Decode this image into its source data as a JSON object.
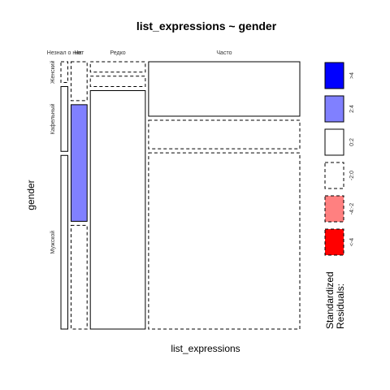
{
  "chart_data": {
    "type": "mosaic",
    "title": "list_expressions ~ gender",
    "xlabel": "list_expressions",
    "ylabel": "gender",
    "x_categories": [
      "Не знал о них",
      "Нет",
      "Редко",
      "Часто"
    ],
    "x_labels_shown": [
      "Незнал о них",
      "Нет",
      "Редко",
      "Часто"
    ],
    "y_categories": [
      "Женский",
      "Кафельный",
      "Мужской"
    ],
    "cells": [
      {
        "x": "Не знал о них",
        "y": "Женский",
        "proportion": 0.08,
        "shade": "-2:0"
      },
      {
        "x": "Не знал о них",
        "y": "Кафельный",
        "proportion": 0.25,
        "shade": "0:2"
      },
      {
        "x": "Не знал о них",
        "y": "Мужской",
        "proportion": 0.67,
        "shade": "0:2"
      },
      {
        "x": "Нет",
        "y": "Женский",
        "proportion": 0.15,
        "shade": "-2:0"
      },
      {
        "x": "Нет",
        "y": "Кафельный",
        "proportion": 0.45,
        "shade": "2:4"
      },
      {
        "x": "Нет",
        "y": "Мужской",
        "proportion": 0.4,
        "shade": "-2:0"
      },
      {
        "x": "Редко",
        "y": "Женский",
        "proportion": 0.04,
        "shade": "-2:0"
      },
      {
        "x": "Редко",
        "y": "Кафельный",
        "proportion": 0.04,
        "shade": "-2:0"
      },
      {
        "x": "Редко",
        "y": "Мужской",
        "proportion": 0.92,
        "shade": "0:2"
      },
      {
        "x": "Часто",
        "y": "Женский",
        "proportion": 0.21,
        "shade": "0:2"
      },
      {
        "x": "Часто",
        "y": "Кафельный",
        "proportion": 0.11,
        "shade": "-2:0"
      },
      {
        "x": "Часто",
        "y": "Мужской",
        "proportion": 0.68,
        "shade": "-2:0"
      }
    ],
    "x_shares": [
      0.03,
      0.07,
      0.24,
      0.66
    ],
    "legend": {
      "title_lines": [
        "Standardized",
        "Residuals:"
      ],
      "position": "right",
      "items": [
        {
          "label": ">4",
          "fill": "#0000ff",
          "dashed": false
        },
        {
          "label": "2:4",
          "fill": "#8080ff",
          "dashed": false
        },
        {
          "label": "0:2",
          "fill": "#ffffff",
          "dashed": false
        },
        {
          "label": "-2:0",
          "fill": "#ffffff",
          "dashed": true
        },
        {
          "label": "-4:-2",
          "fill": "#ff8080",
          "dashed": true
        },
        {
          "label": "<-4",
          "fill": "#ff0000",
          "dashed": true
        }
      ]
    }
  }
}
